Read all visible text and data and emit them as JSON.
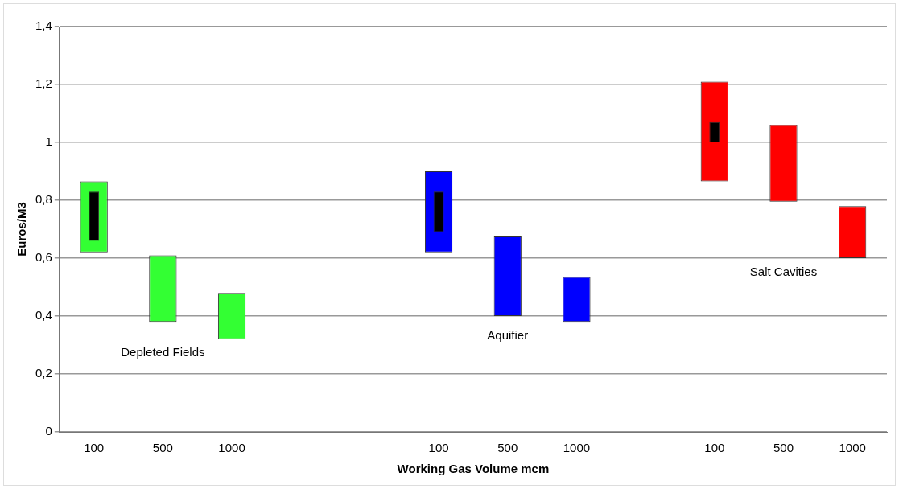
{
  "chart_data": {
    "type": "bar",
    "xlabel": "Working Gas Volume mcm",
    "ylabel": "Euros/M3",
    "categories": [
      "100",
      "500",
      "1000",
      null,
      null,
      "100",
      "500",
      "1000",
      null,
      "100",
      "500",
      "1000"
    ],
    "series": [
      {
        "name": "Depleted Fields",
        "color": "#33ff33",
        "values": [
          0.245,
          0.23,
          0.16,
          null,
          null,
          null,
          null,
          null,
          null,
          null,
          null,
          null
        ],
        "base": [
          0.62,
          0.38,
          0.32,
          null,
          null,
          null,
          null,
          null,
          null,
          null,
          null,
          null
        ]
      },
      {
        "name": "Aquifier",
        "color": "#0000ff",
        "values": [
          null,
          null,
          null,
          null,
          null,
          0.28,
          0.275,
          0.155,
          null,
          null,
          null,
          null
        ],
        "base": [
          null,
          null,
          null,
          null,
          null,
          0.62,
          0.4,
          0.38,
          null,
          null,
          null,
          null
        ]
      },
      {
        "name": "Salt Cavities",
        "color": "#ff0000",
        "values": [
          null,
          null,
          null,
          null,
          null,
          null,
          null,
          null,
          null,
          0.345,
          0.265,
          0.18
        ],
        "base": [
          null,
          null,
          null,
          null,
          null,
          null,
          null,
          null,
          null,
          0.865,
          0.795,
          0.6
        ]
      },
      {
        "color": "#000000",
        "values": [
          0.17,
          null,
          null,
          null,
          null,
          0.14,
          null,
          null,
          null,
          0.07,
          null,
          null
        ],
        "base": [
          0.66,
          null,
          null,
          null,
          null,
          0.69,
          null,
          null,
          null,
          1.0,
          null,
          null
        ]
      }
    ],
    "ylim": [
      0,
      1.4
    ],
    "yticks": [
      0,
      {
        "value": 0.2,
        "label": "0,2"
      },
      {
        "value": 0.4,
        "label": "0,4"
      },
      {
        "value": 0.6,
        "label": "0,6"
      },
      {
        "value": 0.8,
        "label": "0,8"
      },
      1,
      {
        "value": 1.2,
        "label": "1,2"
      },
      {
        "value": 1.4,
        "label": "1,4"
      }
    ],
    "grid": "y",
    "legend": false
  }
}
